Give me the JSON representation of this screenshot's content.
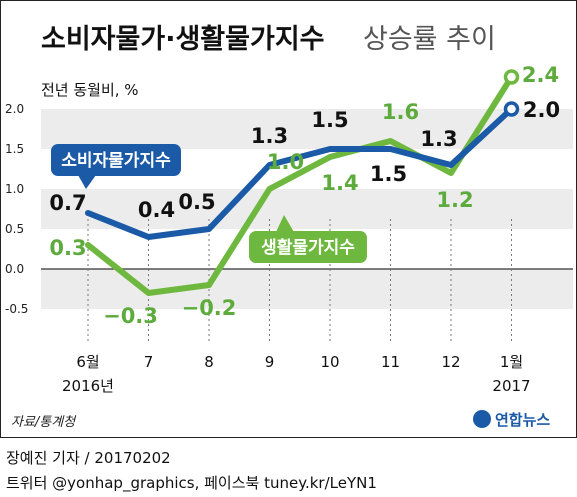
{
  "title": "소비자물가·생활물가지수",
  "subtitle": "상승률 추이",
  "unit_label": "전년 동월비, %",
  "source": "자료/통계청",
  "logo_text": "연합뉴스",
  "footer": {
    "line1": "장예진 기자 / 20170202",
    "line2": "트위터 @yonhap_graphics, 페이스북 tuney.kr/LeYN1"
  },
  "chart_data": {
    "type": "line",
    "x_ticks": [
      {
        "top": "6월",
        "bottom": "2016년"
      },
      {
        "top": "7",
        "bottom": ""
      },
      {
        "top": "8",
        "bottom": ""
      },
      {
        "top": "9",
        "bottom": ""
      },
      {
        "top": "10",
        "bottom": ""
      },
      {
        "top": "11",
        "bottom": ""
      },
      {
        "top": "12",
        "bottom": ""
      },
      {
        "top": "1월",
        "bottom": "2017"
      }
    ],
    "y_ticks": [
      "2.0",
      "1.5",
      "1.0",
      "0.5",
      "0.0",
      "-0.5"
    ],
    "ylim": [
      -0.5,
      2.0
    ],
    "grid": "alternating horizontal bands",
    "series": [
      {
        "name": "소비자물가지수",
        "color": "#1b5aa6",
        "values": [
          0.7,
          0.4,
          0.5,
          1.3,
          1.5,
          1.5,
          1.3,
          2.0
        ],
        "labels": [
          "0.7",
          "0.4",
          "0.5",
          "1.3",
          "1.5",
          "1.5",
          "1.3",
          "2.0"
        ]
      },
      {
        "name": "생활물가지수",
        "color": "#6fb83f",
        "values": [
          0.3,
          -0.3,
          -0.2,
          1.0,
          1.4,
          1.6,
          1.2,
          2.4
        ],
        "labels": [
          "0.3",
          "−0.3",
          "−0.2",
          "1.0",
          "1.4",
          "1.6",
          "1.2",
          "2.4"
        ]
      }
    ]
  }
}
